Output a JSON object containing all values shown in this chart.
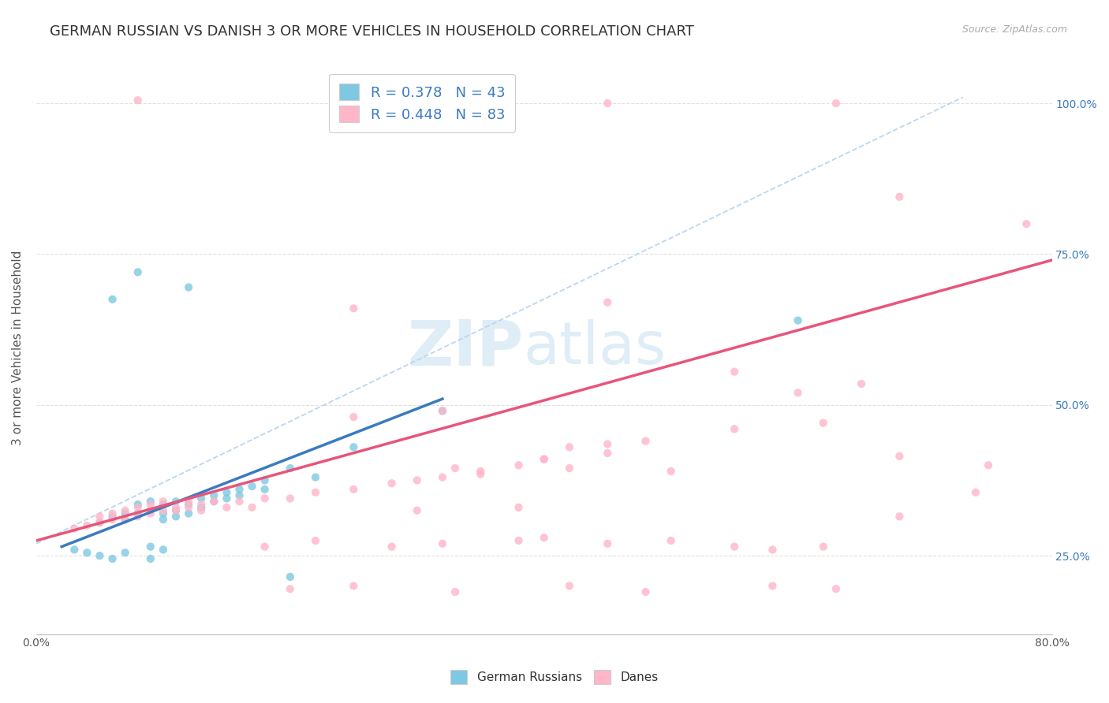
{
  "title": "GERMAN RUSSIAN VS DANISH 3 OR MORE VEHICLES IN HOUSEHOLD CORRELATION CHART",
  "source": "Source: ZipAtlas.com",
  "ylabel": "3 or more Vehicles in Household",
  "watermark": "ZIPatlas",
  "blue_color": "#7ec8e3",
  "pink_color": "#ffb6c8",
  "blue_line_color": "#3a7abf",
  "pink_line_color": "#e8557a",
  "dashed_color": "#aaccee",
  "blue_scatter": [
    [
      0.005,
      0.305
    ],
    [
      0.006,
      0.315
    ],
    [
      0.007,
      0.32
    ],
    [
      0.007,
      0.31
    ],
    [
      0.008,
      0.335
    ],
    [
      0.008,
      0.32
    ],
    [
      0.009,
      0.34
    ],
    [
      0.009,
      0.325
    ],
    [
      0.01,
      0.335
    ],
    [
      0.01,
      0.32
    ],
    [
      0.01,
      0.31
    ],
    [
      0.011,
      0.34
    ],
    [
      0.011,
      0.325
    ],
    [
      0.011,
      0.315
    ],
    [
      0.012,
      0.335
    ],
    [
      0.012,
      0.32
    ],
    [
      0.013,
      0.345
    ],
    [
      0.013,
      0.33
    ],
    [
      0.014,
      0.35
    ],
    [
      0.014,
      0.34
    ],
    [
      0.015,
      0.355
    ],
    [
      0.015,
      0.345
    ],
    [
      0.016,
      0.36
    ],
    [
      0.016,
      0.35
    ],
    [
      0.017,
      0.365
    ],
    [
      0.018,
      0.375
    ],
    [
      0.018,
      0.36
    ],
    [
      0.02,
      0.395
    ],
    [
      0.022,
      0.38
    ],
    [
      0.025,
      0.43
    ],
    [
      0.032,
      0.49
    ],
    [
      0.003,
      0.26
    ],
    [
      0.004,
      0.255
    ],
    [
      0.005,
      0.25
    ],
    [
      0.006,
      0.245
    ],
    [
      0.007,
      0.255
    ],
    [
      0.009,
      0.245
    ],
    [
      0.02,
      0.215
    ],
    [
      0.009,
      0.265
    ],
    [
      0.01,
      0.26
    ],
    [
      0.012,
      0.695
    ],
    [
      0.008,
      0.72
    ],
    [
      0.06,
      0.64
    ],
    [
      0.006,
      0.675
    ]
  ],
  "pink_scatter": [
    [
      0.003,
      0.295
    ],
    [
      0.004,
      0.3
    ],
    [
      0.005,
      0.305
    ],
    [
      0.005,
      0.315
    ],
    [
      0.006,
      0.31
    ],
    [
      0.006,
      0.32
    ],
    [
      0.007,
      0.31
    ],
    [
      0.007,
      0.325
    ],
    [
      0.008,
      0.315
    ],
    [
      0.008,
      0.33
    ],
    [
      0.009,
      0.32
    ],
    [
      0.009,
      0.335
    ],
    [
      0.01,
      0.325
    ],
    [
      0.01,
      0.34
    ],
    [
      0.011,
      0.33
    ],
    [
      0.011,
      0.325
    ],
    [
      0.012,
      0.33
    ],
    [
      0.012,
      0.34
    ],
    [
      0.013,
      0.325
    ],
    [
      0.013,
      0.335
    ],
    [
      0.014,
      0.34
    ],
    [
      0.015,
      0.33
    ],
    [
      0.016,
      0.34
    ],
    [
      0.017,
      0.33
    ],
    [
      0.018,
      0.345
    ],
    [
      0.02,
      0.345
    ],
    [
      0.022,
      0.355
    ],
    [
      0.025,
      0.36
    ],
    [
      0.028,
      0.37
    ],
    [
      0.03,
      0.375
    ],
    [
      0.032,
      0.38
    ],
    [
      0.033,
      0.395
    ],
    [
      0.035,
      0.39
    ],
    [
      0.038,
      0.4
    ],
    [
      0.04,
      0.41
    ],
    [
      0.042,
      0.43
    ],
    [
      0.045,
      0.435
    ],
    [
      0.048,
      0.44
    ],
    [
      0.055,
      0.46
    ],
    [
      0.062,
      0.47
    ],
    [
      0.04,
      0.41
    ],
    [
      0.045,
      0.42
    ],
    [
      0.018,
      0.265
    ],
    [
      0.022,
      0.275
    ],
    [
      0.028,
      0.265
    ],
    [
      0.032,
      0.27
    ],
    [
      0.038,
      0.275
    ],
    [
      0.04,
      0.28
    ],
    [
      0.045,
      0.27
    ],
    [
      0.05,
      0.275
    ],
    [
      0.055,
      0.265
    ],
    [
      0.058,
      0.26
    ],
    [
      0.062,
      0.265
    ],
    [
      0.035,
      0.385
    ],
    [
      0.042,
      0.395
    ],
    [
      0.05,
      0.39
    ],
    [
      0.025,
      0.48
    ],
    [
      0.032,
      0.49
    ],
    [
      0.025,
      0.66
    ],
    [
      0.045,
      0.67
    ],
    [
      0.02,
      0.195
    ],
    [
      0.025,
      0.2
    ],
    [
      0.033,
      0.19
    ],
    [
      0.042,
      0.2
    ],
    [
      0.048,
      0.19
    ],
    [
      0.058,
      0.2
    ],
    [
      0.063,
      0.195
    ],
    [
      0.038,
      0.33
    ],
    [
      0.03,
      0.325
    ],
    [
      0.055,
      0.555
    ],
    [
      0.06,
      0.52
    ],
    [
      0.065,
      0.535
    ],
    [
      0.068,
      0.415
    ],
    [
      0.075,
      0.4
    ],
    [
      0.068,
      0.315
    ],
    [
      0.074,
      0.355
    ],
    [
      0.078,
      0.8
    ],
    [
      0.068,
      0.845
    ],
    [
      0.063,
      1.0
    ],
    [
      0.045,
      1.0
    ],
    [
      0.008,
      1.005
    ]
  ],
  "blue_line_x": [
    0.002,
    0.032
  ],
  "blue_line_y": [
    0.265,
    0.51
  ],
  "pink_line_x": [
    0.0,
    0.08
  ],
  "pink_line_y": [
    0.275,
    0.74
  ],
  "dashed_line_x": [
    0.0,
    0.073
  ],
  "dashed_line_y": [
    0.27,
    1.01
  ],
  "background_color": "#ffffff",
  "grid_color": "#e0e0e0",
  "title_fontsize": 13,
  "axis_label_fontsize": 11,
  "tick_fontsize": 10,
  "watermark_fontsize": 58,
  "watermark_color": "#c8e4f5",
  "watermark_alpha": 0.45,
  "xmin": 0.0,
  "xmax": 0.08,
  "ymin": 0.12,
  "ymax": 1.07
}
